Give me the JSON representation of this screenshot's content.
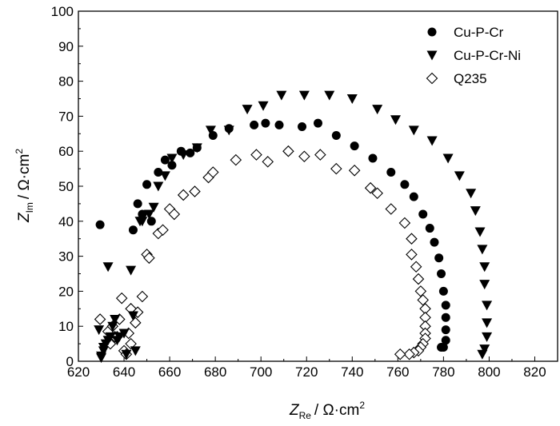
{
  "chart_data": {
    "type": "scatter",
    "xlabel": {
      "main": "Z",
      "sub": "Re",
      "unit": "/ Ω·cm",
      "sup": "2"
    },
    "ylabel": {
      "main": "Z",
      "sub": "Im",
      "unit": "/ Ω·cm",
      "sup": "2"
    },
    "xlim": [
      620,
      830
    ],
    "ylim": [
      0,
      100
    ],
    "xticks": [
      620,
      640,
      660,
      680,
      700,
      720,
      740,
      760,
      780,
      800,
      820
    ],
    "yticks": [
      0,
      10,
      20,
      30,
      40,
      50,
      60,
      70,
      80,
      90,
      100
    ],
    "legend_position": "top-right",
    "grid": false,
    "series": [
      {
        "name": "Cu-P-Cr",
        "marker": "circle-filled",
        "x": [
          629.5,
          644,
          646,
          648,
          650,
          652,
          655,
          658,
          661,
          665,
          669,
          672,
          679,
          686,
          697,
          702,
          708,
          718,
          725,
          733,
          741,
          749,
          757,
          763,
          767,
          771,
          774,
          776,
          778,
          779,
          780,
          781,
          781,
          781,
          781,
          780,
          779
        ],
        "y": [
          39,
          37.5,
          45,
          42,
          50.5,
          40,
          54,
          57.5,
          56,
          60,
          59.5,
          61,
          64.5,
          66.5,
          67.5,
          68,
          67.5,
          67,
          68,
          64.5,
          61.5,
          58,
          54,
          50.5,
          47,
          42,
          38,
          34,
          29.5,
          25,
          20,
          16,
          12.5,
          9,
          6,
          4,
          4
        ]
      },
      {
        "name": "Cu-P-Cr-Ni",
        "marker": "triangle-down-filled",
        "x": [
          629,
          630,
          630,
          631,
          631,
          632,
          633,
          633,
          634,
          635,
          636,
          637,
          638,
          640,
          641,
          643,
          644,
          645,
          647,
          648,
          651,
          653,
          655,
          658,
          661,
          666,
          672,
          678,
          686,
          694,
          701,
          709,
          719,
          730,
          740,
          751,
          759,
          767,
          775,
          782,
          787,
          792,
          794,
          796,
          797,
          798,
          798,
          799,
          799,
          799,
          798,
          797
        ],
        "y": [
          9,
          1,
          1.5,
          3,
          4,
          5,
          27,
          6,
          7,
          10,
          12,
          6,
          7,
          8,
          2,
          26,
          13,
          3,
          40,
          40,
          42,
          44,
          50,
          53,
          58,
          59,
          61,
          66,
          66,
          72,
          73,
          76,
          76,
          76,
          75,
          72,
          69,
          66,
          63,
          58,
          53,
          48,
          43,
          37,
          32,
          27,
          22,
          16,
          11,
          7,
          3.5,
          2
        ]
      },
      {
        "name": "Q235",
        "marker": "diamond-open",
        "x": [
          629.5,
          633,
          634,
          635,
          636,
          637,
          638,
          639,
          640,
          641,
          642,
          643,
          643,
          645,
          646,
          648,
          650,
          651,
          655,
          657,
          660,
          662,
          666,
          671,
          677,
          679,
          689,
          698,
          703,
          712,
          719,
          726,
          733,
          741,
          748,
          751,
          757,
          763,
          766,
          766,
          768,
          769,
          770,
          771,
          772,
          772,
          772,
          772,
          772,
          771,
          770,
          769,
          767,
          765,
          761
        ],
        "y": [
          12,
          8.5,
          5,
          10,
          7,
          7,
          12,
          18,
          3,
          2,
          8,
          5,
          15,
          11,
          14,
          18.5,
          30.5,
          29.5,
          36.5,
          37.5,
          43.5,
          42,
          47.5,
          48.5,
          52.5,
          54,
          57.5,
          59,
          57,
          60,
          58.5,
          59,
          55,
          54.5,
          49.5,
          48,
          43.5,
          39.5,
          35,
          30.5,
          27,
          23.5,
          20,
          17.5,
          15,
          12.5,
          10,
          8,
          6.5,
          5,
          4,
          3,
          2.5,
          2,
          2
        ]
      }
    ]
  }
}
